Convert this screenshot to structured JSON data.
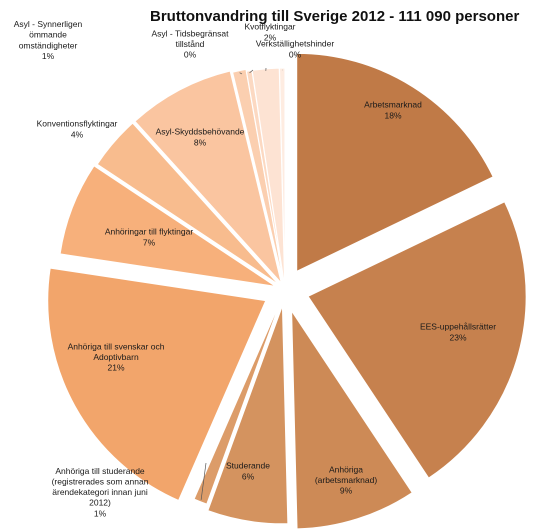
{
  "chart_data": {
    "type": "pie",
    "title": "Bruttonvandring till Sverige 2012 - 111 090 personer",
    "slices": [
      {
        "label": "Arbetsmarknad",
        "value": 18,
        "pct": "18%",
        "color": "#c07a47"
      },
      {
        "label": "EES-uppehållsrätter",
        "value": 23,
        "pct": "23%",
        "color": "#c6814e"
      },
      {
        "label": "Anhöriga (arbetsmarknad)",
        "value": 9,
        "pct": "9%",
        "color": "#cd8a56"
      },
      {
        "label": "Studerande",
        "value": 6,
        "pct": "6%",
        "color": "#d4935f"
      },
      {
        "label": "Anhöriga till studerande (registrerades som annan ärendekategori innan juni 2012)",
        "value": 1,
        "pct": "1%",
        "color": "#dc9c69"
      },
      {
        "label": "Anhöriga till svenskar och Adoptivbarn",
        "value": 21,
        "pct": "21%",
        "color": "#f2a56b"
      },
      {
        "label": "Anhöringar till flyktingar",
        "value": 7,
        "pct": "7%",
        "color": "#f7b07b"
      },
      {
        "label": "Konventionsflyktingar",
        "value": 4,
        "pct": "4%",
        "color": "#f8bc8e"
      },
      {
        "label": "Asyl-Skyddsbehövande",
        "value": 8,
        "pct": "8%",
        "color": "#fac5a0"
      },
      {
        "label": "Asyl - Synnerligen ömmande omständigheter",
        "value": 1,
        "pct": "1%",
        "color": "#fbcfb0"
      },
      {
        "label": "Asyl - Tidsbegränsat tillstånd",
        "value": 0.4,
        "pct": "0%",
        "color": "#fcd9c2"
      },
      {
        "label": "Kvotflyktingar",
        "value": 2,
        "pct": "2%",
        "color": "#fde3d3"
      },
      {
        "label": "Verkställighetshinder",
        "value": 0.4,
        "pct": "0%",
        "color": "#feece1"
      }
    ]
  }
}
